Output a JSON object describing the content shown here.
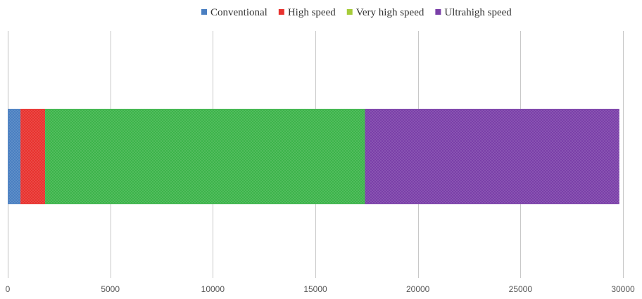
{
  "chart_data": {
    "type": "bar",
    "orientation": "horizontal",
    "stacked": true,
    "title": "",
    "xlabel": "",
    "ylabel": "",
    "categories": [
      ""
    ],
    "series": [
      {
        "name": "Conventional",
        "values": [
          620
        ],
        "color": "#4a7fc1"
      },
      {
        "name": "High speed",
        "values": [
          1200
        ],
        "color": "#e8322e"
      },
      {
        "name": "Very high speed",
        "values": [
          15600
        ],
        "color": "#3cb44a"
      },
      {
        "name": "Ultrahigh speed",
        "values": [
          12400
        ],
        "color": "#7a3fa8"
      }
    ],
    "xlim": [
      0,
      30000
    ],
    "xticks": [
      0,
      5000,
      10000,
      15000,
      20000,
      25000,
      30000
    ],
    "xtick_labels": [
      "0",
      "5000",
      "10000",
      "15000",
      "20000",
      "25000",
      "30000"
    ],
    "grid": true,
    "legend_position": "top-right",
    "legend_marker_colors": [
      "#4a7fc1",
      "#e8322e",
      "#a6cc3a",
      "#7a3fa8"
    ],
    "fill_pattern": "dotted"
  }
}
